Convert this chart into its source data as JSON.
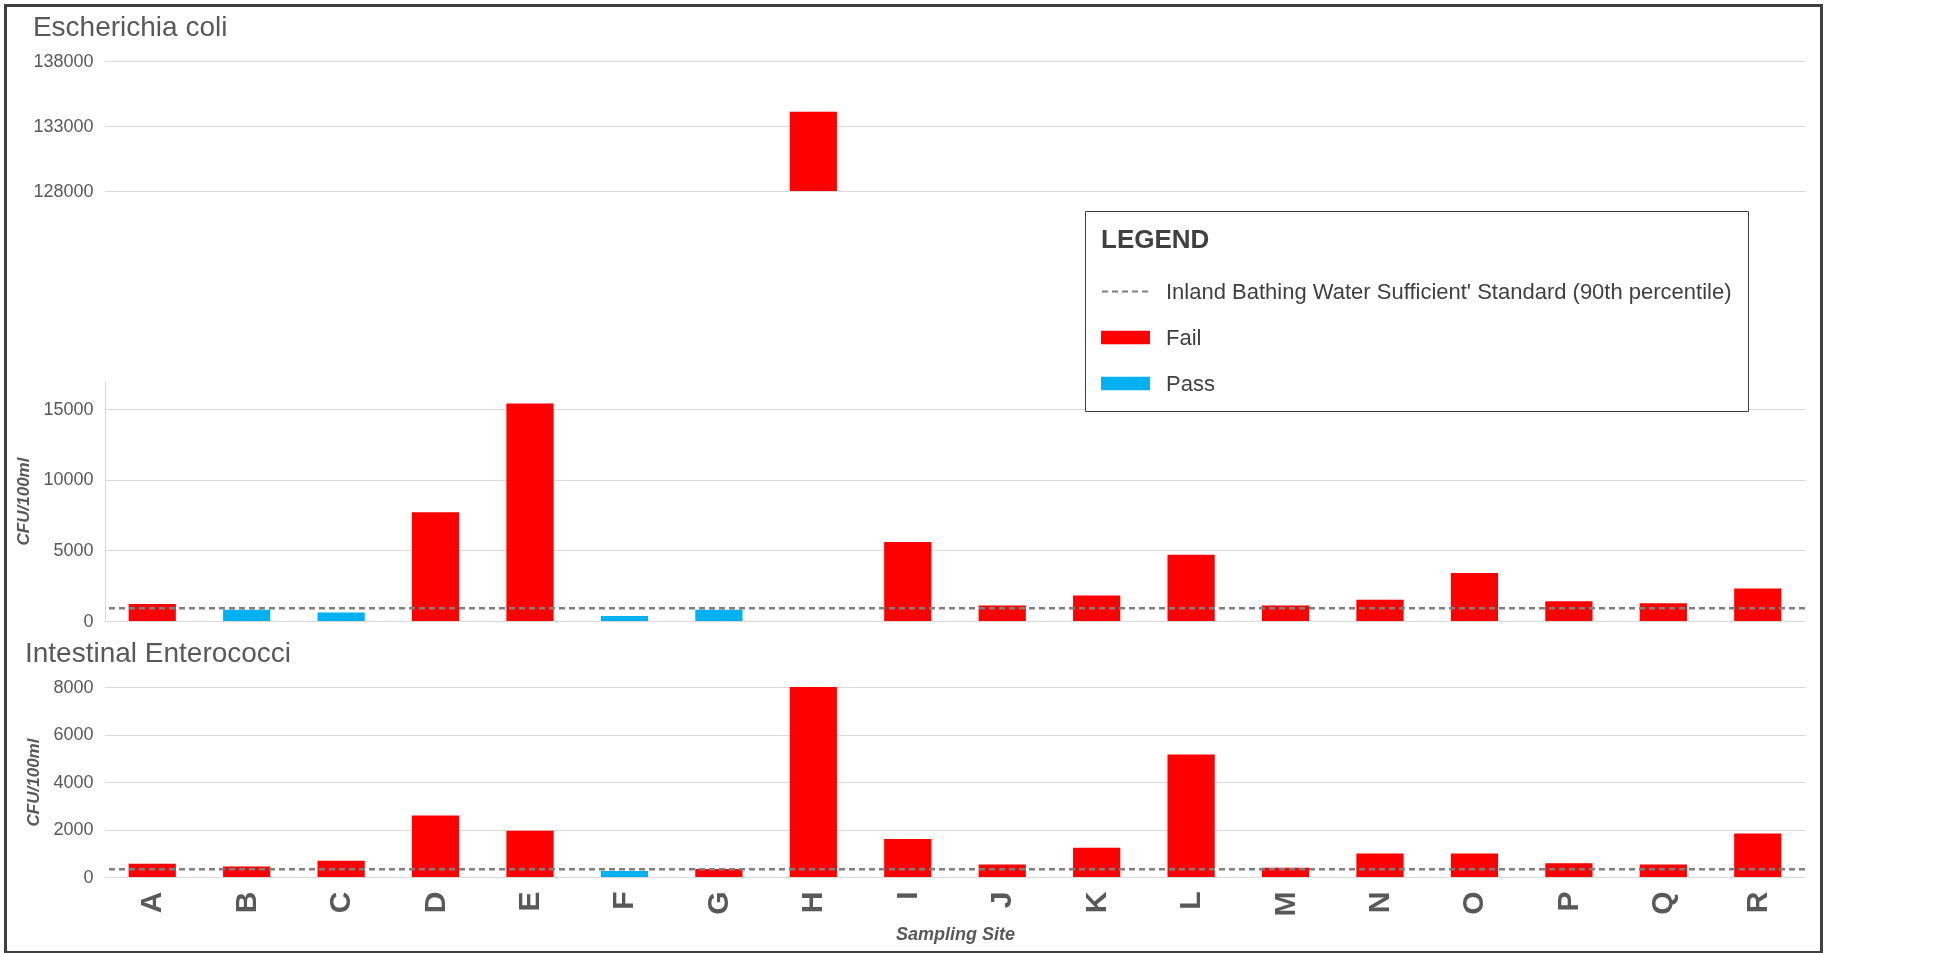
{
  "chart_data": [
    {
      "type": "bar",
      "title": "Escherichia coli",
      "categories": [
        null,
        null,
        null,
        null,
        null,
        null,
        null,
        null,
        null,
        null,
        null,
        null,
        null,
        null,
        null,
        null,
        null,
        null
      ],
      "series": [
        {
          "color": "#ff0000",
          "values": [
            null,
            null,
            null,
            null,
            null,
            null,
            null,
            134100,
            null,
            null,
            null,
            null,
            null,
            null,
            null,
            null,
            null,
            null
          ]
        }
      ],
      "ylim": [
        128000,
        138000
      ],
      "yticks": [
        128000,
        133000,
        138000
      ],
      "grid": "y",
      "tick_labels": "y"
    },
    {
      "type": "bar",
      "categories": [
        null,
        null,
        null,
        null,
        null,
        null,
        null,
        null,
        null,
        null,
        null,
        null,
        null,
        null,
        null,
        null,
        null,
        null
      ],
      "series": [
        {
          "name": "Fail",
          "color": "#ff0000",
          "values": [
            1200,
            null,
            null,
            7700,
            15400,
            null,
            null,
            null,
            5600,
            1100,
            1800,
            4700,
            1100,
            1500,
            3400,
            1400,
            1250,
            2300
          ]
        },
        {
          "name": "Pass",
          "color": "#00b0f0",
          "values": [
            null,
            800,
            600,
            null,
            null,
            350,
            800,
            null,
            null,
            null,
            null,
            null,
            null,
            null,
            null,
            null,
            null,
            null
          ]
        }
      ],
      "ylabel": "CFU/100ml",
      "ylim": [
        0,
        17000
      ],
      "yticks": [
        0,
        5000,
        10000,
        15000
      ],
      "grid": "y",
      "tick_labels": "y",
      "ref_lines": [
        {
          "axis": "y",
          "value": 900,
          "label": "Inland Bathing Water Sufficient' Standard (90th percentile)",
          "color": "#7f7f7f",
          "line_style": "dashed"
        }
      ],
      "legend": "top right",
      "legend_title": "LEGEND"
    },
    {
      "type": "bar",
      "title": "Intestinal Enterococci",
      "categories": [
        "A",
        "B",
        "C",
        "D",
        "E",
        "F",
        "G",
        "H",
        "I",
        "J",
        "K",
        "L",
        "M",
        "N",
        "O",
        "P",
        "Q",
        "R"
      ],
      "series": [
        {
          "color": "#ff0000",
          "values": [
            560,
            440,
            680,
            2590,
            1950,
            null,
            340,
            8000,
            1600,
            530,
            1230,
            5160,
            390,
            990,
            990,
            580,
            530,
            1830
          ]
        },
        {
          "color": "#00b0f0",
          "values": [
            null,
            null,
            null,
            null,
            null,
            250,
            null,
            null,
            null,
            null,
            null,
            null,
            null,
            null,
            null,
            null,
            null,
            null
          ]
        }
      ],
      "xlabel": "Sampling Site",
      "ylabel": "CFU/100ml",
      "ylim": [
        0,
        8000
      ],
      "yticks": [
        0,
        2000,
        4000,
        6000,
        8000
      ],
      "grid": "y",
      "ref_lines": [
        {
          "axis": "y",
          "value": 330,
          "color": "#7f7f7f",
          "line_style": "dashed"
        }
      ]
    }
  ]
}
